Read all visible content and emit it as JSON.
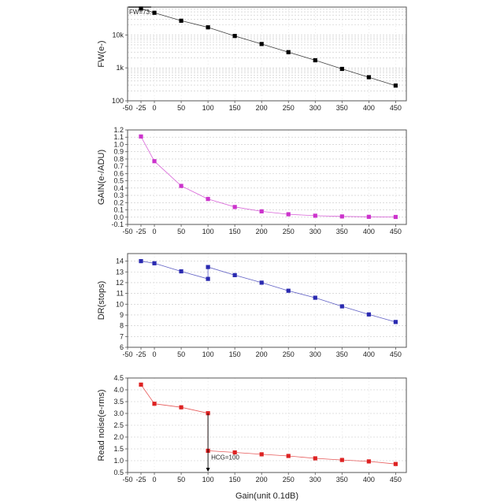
{
  "chart_data": [
    {
      "type": "line",
      "ylabel": "FW(e-)",
      "yscale": "log",
      "ylim": [
        100,
        70000
      ],
      "yticks": [
        {
          "v": 100,
          "label": "100"
        },
        {
          "v": 1000,
          "label": "1k"
        },
        {
          "v": 10000,
          "label": "10k"
        }
      ],
      "xlim": [
        -50,
        470
      ],
      "xticks": [
        -50,
        -25,
        0,
        50,
        100,
        150,
        200,
        250,
        300,
        350,
        400,
        450
      ],
      "xtick_labels": [
        "-50",
        "-25",
        "0",
        "50",
        "100",
        "150",
        "200",
        "250",
        "300",
        "350",
        "400",
        "450"
      ],
      "grid": true,
      "color": "#000000",
      "series": [
        {
          "x": [
            -25,
            0,
            50,
            100,
            150,
            200,
            250,
            300,
            350,
            400,
            450
          ],
          "y": [
            63000,
            47000,
            27000,
            17000,
            9300,
            5300,
            3000,
            1700,
            930,
            520,
            290
          ]
        }
      ],
      "annotations": [
        {
          "text": "FW=73.",
          "x": -25,
          "y": 70000
        }
      ]
    },
    {
      "type": "line",
      "ylabel": "GAIN(e-/ADU)",
      "ylim": [
        -0.1,
        1.2
      ],
      "yticks": [
        -0.1,
        0.0,
        0.1,
        0.2,
        0.3,
        0.4,
        0.5,
        0.6,
        0.7,
        0.8,
        0.9,
        1.0,
        1.1,
        1.2
      ],
      "ytick_labels": [
        "-0.1",
        "0.0",
        "0.1",
        "0.2",
        "0.3",
        "0.4",
        "0.5",
        "0.6",
        "0.7",
        "0.8",
        "0.9",
        "1.0",
        "1.1",
        "1.2"
      ],
      "xlim": [
        -50,
        470
      ],
      "xticks": [
        -50,
        -25,
        0,
        50,
        100,
        150,
        200,
        250,
        300,
        350,
        400,
        450
      ],
      "xtick_labels": [
        "-50",
        "-25",
        "0",
        "50",
        "100",
        "150",
        "200",
        "250",
        "300",
        "350",
        "400",
        "450"
      ],
      "grid": true,
      "color": "#cc33cc",
      "series": [
        {
          "x": [
            -25,
            0,
            50,
            100,
            150,
            200,
            250,
            300,
            350,
            400,
            450
          ],
          "y": [
            1.11,
            0.77,
            0.43,
            0.25,
            0.14,
            0.08,
            0.04,
            0.02,
            0.01,
            0.005,
            0.003
          ]
        }
      ]
    },
    {
      "type": "line",
      "ylabel": "DR(stops)",
      "ylim": [
        6,
        14.7
      ],
      "yticks": [
        6,
        7,
        8,
        9,
        10,
        11,
        12,
        13,
        14
      ],
      "ytick_labels": [
        "6",
        "7",
        "8",
        "9",
        "10",
        "11",
        "12",
        "13",
        "14"
      ],
      "xlim": [
        -50,
        470
      ],
      "xticks": [
        -50,
        -25,
        0,
        50,
        100,
        150,
        200,
        250,
        300,
        350,
        400,
        450
      ],
      "xtick_labels": [
        "-50",
        "-25",
        "0",
        "50",
        "100",
        "150",
        "200",
        "250",
        "300",
        "350",
        "400",
        "450"
      ],
      "grid": true,
      "color": "#2a2ab0",
      "series": [
        {
          "x": [
            -25,
            0,
            50,
            100,
            100,
            150,
            200,
            250,
            300,
            350,
            400,
            450
          ],
          "y": [
            14.0,
            13.8,
            13.05,
            12.35,
            13.45,
            12.7,
            12.0,
            11.25,
            10.6,
            9.8,
            9.05,
            8.35
          ]
        }
      ]
    },
    {
      "type": "line",
      "ylabel": "Read noise(e-rms)",
      "xlabel": "Gain(unit 0.1dB)",
      "ylim": [
        0.5,
        4.5
      ],
      "yticks": [
        0.5,
        1.0,
        1.5,
        2.0,
        2.5,
        3.0,
        3.5,
        4.0,
        4.5
      ],
      "ytick_labels": [
        "0.5",
        "1.0",
        "1.5",
        "2.0",
        "2.5",
        "3.0",
        "3.5",
        "4.0",
        "4.5"
      ],
      "xlim": [
        -50,
        470
      ],
      "xticks": [
        -50,
        -25,
        0,
        50,
        100,
        150,
        200,
        250,
        300,
        350,
        400,
        450
      ],
      "xtick_labels": [
        "-50",
        "-25",
        "0",
        "50",
        "100",
        "150",
        "200",
        "250",
        "300",
        "350",
        "400",
        "450"
      ],
      "grid": true,
      "color": "#dd2222",
      "series": [
        {
          "x": [
            -25,
            0,
            50,
            100,
            100,
            150,
            200,
            250,
            300,
            350,
            400,
            450
          ],
          "y": [
            4.22,
            3.41,
            3.26,
            3.01,
            1.42,
            1.35,
            1.27,
            1.2,
            1.1,
            1.03,
            0.97,
            0.86
          ]
        }
      ],
      "annotations": [
        {
          "text": "HCG=100",
          "x": 100,
          "y": 1.15
        }
      ]
    }
  ]
}
